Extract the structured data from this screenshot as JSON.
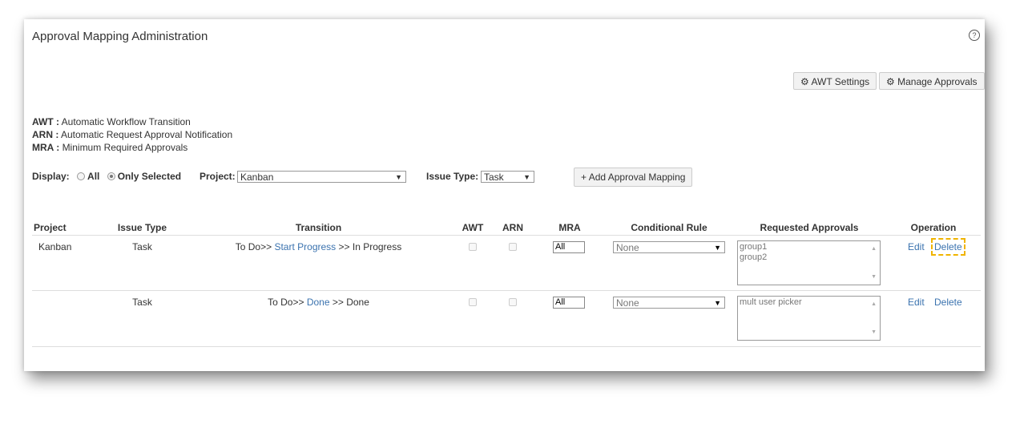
{
  "title": "Approval Mapping Administration",
  "toolbar": {
    "awt_settings": "AWT Settings",
    "manage_approvals": "Manage Approvals",
    "add_mapping": "Add Approval Mapping"
  },
  "legend": [
    {
      "abbr": "AWT :",
      "text": "Automatic Workflow Transition"
    },
    {
      "abbr": "ARN :",
      "text": "Automatic Request Approval Notification"
    },
    {
      "abbr": "MRA :",
      "text": "Minimum Required Approvals"
    }
  ],
  "filters": {
    "display_label": "Display:",
    "all": "All",
    "only_selected": "Only Selected",
    "selected": "only_selected",
    "project_label": "Project:",
    "project_value": "Kanban",
    "issue_type_label": "Issue Type:",
    "issue_type_value": "Task"
  },
  "columns": [
    "Project",
    "Issue Type",
    "Transition",
    "AWT",
    "ARN",
    "MRA",
    "Conditional Rule",
    "Requested Approvals",
    "Operation"
  ],
  "rows": [
    {
      "project": "Kanban",
      "issue_type": "Task",
      "from": "To Do>>",
      "transition": "Start Progress",
      "to": ">> In Progress",
      "awt": false,
      "arn": false,
      "mra": "All",
      "rule": "None",
      "approvals": [
        "group1",
        "group2"
      ],
      "edit": "Edit",
      "delete": "Delete"
    },
    {
      "project": "",
      "issue_type": "Task",
      "from": "To Do>>",
      "transition": "Done",
      "to": ">> Done",
      "awt": false,
      "arn": false,
      "mra": "All",
      "rule": "None",
      "approvals": [
        "mult user picker"
      ],
      "edit": "Edit",
      "delete": "Delete"
    }
  ],
  "colors": {
    "link": "#3b73af",
    "highlight": "#f0b400"
  }
}
